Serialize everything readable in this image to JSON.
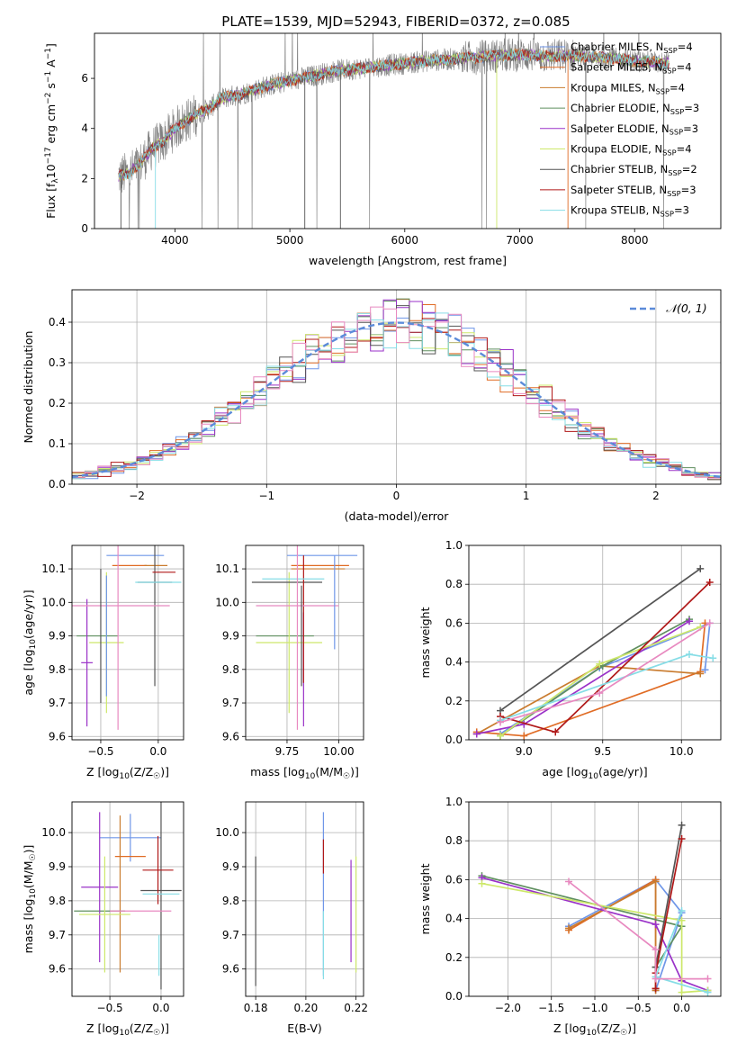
{
  "figure_title": "PLATE=1539, MJD=52943, FIBERID=0372, z=0.085",
  "colors": {
    "Chabrier MILES": "#6f96e8",
    "Salpeter MILES": "#e06c25",
    "Kroupa MILES": "#c97b2e",
    "Chabrier ELODIE": "#5f8f5f",
    "Salpeter ELODIE": "#9a32c8",
    "Kroupa ELODIE": "#cde86a",
    "Chabrier STELIB": "#555555",
    "Salpeter STELIB": "#b01818",
    "Kroupa STELIB": "#86dde6",
    "hist_pink": "#e889c0",
    "normal_curve": "#5b8bd9",
    "data_grey": "#808080"
  },
  "chart_data": [
    {
      "id": "spectrum",
      "type": "line",
      "xlabel": "wavelength [Angstrom, rest frame]",
      "ylabel": "Flux [f_λ10^-17 erg cm^-2 s^-1 A^-1]",
      "xlim": [
        3300,
        8750
      ],
      "ylim": [
        0,
        7.8
      ],
      "xticks": [
        4000,
        5000,
        6000,
        7000,
        8000
      ],
      "yticks": [
        0,
        2,
        4,
        6
      ],
      "grid": false,
      "legend_position": "top-right",
      "legend": [
        {
          "label": "Chabrier MILES, N_SSP=4",
          "color": "#6f96e8"
        },
        {
          "label": "Salpeter MILES, N_SSP=4",
          "color": "#e06c25"
        },
        {
          "label": "Kroupa MILES, N_SSP=4",
          "color": "#c97b2e"
        },
        {
          "label": "Chabrier ELODIE, N_SSP=3",
          "color": "#5f8f5f"
        },
        {
          "label": "Salpeter ELODIE, N_SSP=3",
          "color": "#9a32c8"
        },
        {
          "label": "Kroupa ELODIE, N_SSP=4",
          "color": "#cde86a"
        },
        {
          "label": "Chabrier STELIB, N_SSP=2",
          "color": "#555555"
        },
        {
          "label": "Salpeter STELIB, N_SSP=3",
          "color": "#b01818"
        },
        {
          "label": "Kroupa STELIB, N_SSP=3",
          "color": "#86dde6"
        }
      ],
      "model_continuum": {
        "x": [
          3500,
          3600,
          3700,
          3800,
          3900,
          4000,
          4100,
          4200,
          4300,
          4400,
          4600,
          4800,
          5000,
          5200,
          5400,
          5600,
          5800,
          6000,
          6200,
          6500,
          6800,
          7000,
          7200,
          7500,
          7800,
          8000,
          8300
        ],
        "y": [
          2.1,
          2.2,
          2.6,
          3.2,
          3.5,
          4.0,
          4.3,
          4.6,
          4.8,
          5.2,
          5.4,
          5.7,
          5.9,
          6.1,
          6.3,
          6.4,
          6.5,
          6.6,
          6.7,
          6.8,
          6.9,
          6.95,
          6.9,
          6.9,
          6.8,
          6.7,
          6.6
        ]
      }
    },
    {
      "id": "residual-histogram",
      "type": "bar",
      "xlabel": "(data-model)/error",
      "ylabel": "Normed distribution",
      "xlim": [
        -2.5,
        2.5
      ],
      "ylim": [
        0,
        0.48
      ],
      "xticks": [
        -2,
        -1,
        0,
        1,
        2
      ],
      "yticks": [
        0.0,
        0.1,
        0.2,
        0.3,
        0.4
      ],
      "grid": true,
      "legend_position": "top-right",
      "legend": [
        {
          "label": "N(0,1)",
          "color": "#5b8bd9",
          "style": "dashed"
        }
      ],
      "bin_width": 0.1
    },
    {
      "id": "age-vs-Z",
      "type": "scatter",
      "xlabel": "Z [log10(Z/Z☉)]",
      "ylabel": "age [log10(age/yr)]",
      "xlim": [
        -0.75,
        0.22
      ],
      "ylim": [
        9.59,
        10.17
      ],
      "xticks": [
        -0.5,
        0.0
      ],
      "yticks": [
        9.6,
        9.7,
        9.8,
        9.9,
        10.0,
        10.1
      ],
      "grid": true,
      "points": [
        {
          "series": "Chabrier MILES",
          "x": -0.2,
          "xerr": 0.25,
          "y": 10.14,
          "yerr": 0.0
        },
        {
          "series": "Salpeter MILES",
          "x": -0.25,
          "xerr": 0.15,
          "y": 10.11,
          "yerr": 0.0
        },
        {
          "series": "Kroupa MILES",
          "x": -0.02,
          "xerr": 0.1,
          "y": 10.11,
          "yerr": 0.0
        },
        {
          "series": "Chabrier ELODIE",
          "x": -0.53,
          "xerr": 0.18,
          "y": 9.9,
          "yerr": 0.0
        },
        {
          "series": "Salpeter ELODIE",
          "x": -0.62,
          "xerr": 0.05,
          "y": 9.82,
          "yerr": 0.19
        },
        {
          "series": "Kroupa ELODIE",
          "x": -0.45,
          "xerr": 0.15,
          "y": 9.88,
          "yerr": 0.21
        },
        {
          "series": "Chabrier STELIB",
          "x": -0.03,
          "xerr": 0.15,
          "y": 10.06,
          "yerr": 0.31
        },
        {
          "series": "Salpeter STELIB",
          "x": 0.05,
          "xerr": 0.1,
          "y": 10.09,
          "yerr": 0.0
        },
        {
          "series": "Kroupa STELIB",
          "x": 0.0,
          "xerr": 0.2,
          "y": 10.06,
          "yerr": 0.0
        },
        {
          "series": "hist_pink",
          "x": -0.35,
          "xerr": 0.45,
          "y": 9.99,
          "yerr": 0.37
        },
        {
          "series": "Chabrier MILES",
          "x": -0.45,
          "xerr": 0.0,
          "y": 9.9,
          "yerr": 0.18
        },
        {
          "series": "Chabrier STELIB",
          "x": -0.5,
          "xerr": 0.0,
          "y": 9.9,
          "yerr": 0.2
        }
      ]
    },
    {
      "id": "age-vs-mass",
      "type": "scatter",
      "xlabel": "mass [log10(M/M☉)]",
      "ylabel": "",
      "xlim": [
        9.55,
        10.12
      ],
      "ylim": [
        9.59,
        10.17
      ],
      "xticks": [
        9.75,
        10.0
      ],
      "yticks": [
        9.6,
        9.7,
        9.8,
        9.9,
        10.0,
        10.1
      ],
      "grid": true,
      "points": [
        {
          "series": "Chabrier MILES",
          "x": 9.92,
          "xerr": 0.17,
          "y": 10.14,
          "yerr": 0.0
        },
        {
          "series": "Salpeter MILES",
          "x": 9.91,
          "xerr": 0.14,
          "y": 10.11,
          "yerr": 0.0
        },
        {
          "series": "Kroupa MILES",
          "x": 9.9,
          "xerr": 0.13,
          "y": 10.1,
          "yerr": 0.0
        },
        {
          "series": "Chabrier ELODIE",
          "x": 9.74,
          "xerr": 0.14,
          "y": 9.9,
          "yerr": 0.0
        },
        {
          "series": "Salpeter ELODIE",
          "x": 9.83,
          "xerr": 0.0,
          "y": 9.8,
          "yerr": 0.17
        },
        {
          "series": "Kroupa ELODIE",
          "x": 9.76,
          "xerr": 0.16,
          "y": 9.88,
          "yerr": 0.21
        },
        {
          "series": "Chabrier STELIB",
          "x": 9.75,
          "xerr": 0.17,
          "y": 10.06,
          "yerr": 0.0
        },
        {
          "series": "Salpeter STELIB",
          "x": 9.83,
          "xerr": 0.0,
          "y": 9.95,
          "yerr": 0.19
        },
        {
          "series": "Kroupa STELIB",
          "x": 9.78,
          "xerr": 0.15,
          "y": 10.07,
          "yerr": 0.0
        },
        {
          "series": "hist_pink",
          "x": 9.8,
          "xerr": 0.2,
          "y": 9.99,
          "yerr": 0.37
        },
        {
          "series": "Chabrier MILES",
          "x": 9.98,
          "xerr": 0.0,
          "y": 10.0,
          "yerr": 0.14
        },
        {
          "series": "Chabrier STELIB",
          "x": 9.82,
          "xerr": 0.0,
          "y": 9.9,
          "yerr": 0.15
        }
      ]
    },
    {
      "id": "mass-weight-vs-age",
      "type": "line",
      "xlabel": "age [log10(age/yr)]",
      "ylabel": "mass weight",
      "xlim": [
        8.65,
        10.25
      ],
      "ylim": [
        0.0,
        1.0
      ],
      "xticks": [
        9.0,
        9.5,
        10.0
      ],
      "yticks": [
        0.0,
        0.2,
        0.4,
        0.6,
        0.8,
        1.0
      ],
      "grid": true,
      "series": [
        {
          "name": "Chabrier MILES",
          "x": [
            8.85,
            9.48,
            10.18,
            10.15
          ],
          "y": [
            0.03,
            0.37,
            0.6,
            0.36
          ]
        },
        {
          "name": "Salpeter MILES",
          "x": [
            8.7,
            9.0,
            10.12,
            10.15
          ],
          "y": [
            0.04,
            0.02,
            0.35,
            0.6
          ]
        },
        {
          "name": "Kroupa MILES",
          "x": [
            8.7,
            9.48,
            10.12
          ],
          "y": [
            0.03,
            0.38,
            0.34
          ]
        },
        {
          "name": "Chabrier ELODIE",
          "x": [
            8.85,
            9.5,
            10.05
          ],
          "y": [
            0.02,
            0.38,
            0.62
          ]
        },
        {
          "name": "Salpeter ELODIE",
          "x": [
            8.7,
            9.0,
            10.05
          ],
          "y": [
            0.03,
            0.08,
            0.61
          ]
        },
        {
          "name": "Kroupa ELODIE",
          "x": [
            8.85,
            9.48,
            10.12
          ],
          "y": [
            0.02,
            0.39,
            0.58
          ]
        },
        {
          "name": "Chabrier STELIB",
          "x": [
            8.85,
            10.12
          ],
          "y": [
            0.15,
            0.88
          ]
        },
        {
          "name": "Salpeter STELIB",
          "x": [
            8.85,
            9.2,
            10.18
          ],
          "y": [
            0.12,
            0.04,
            0.81
          ]
        },
        {
          "name": "Kroupa STELIB",
          "x": [
            8.85,
            10.05,
            10.2
          ],
          "y": [
            0.1,
            0.44,
            0.42
          ]
        },
        {
          "name": "hist_pink",
          "x": [
            8.85,
            9.48,
            10.18
          ],
          "y": [
            0.09,
            0.24,
            0.6
          ]
        }
      ]
    },
    {
      "id": "mass-vs-Z",
      "type": "scatter",
      "xlabel": "Z [log10(Z/Z☉)]",
      "ylabel": "mass [log10(M/M☉)]",
      "xlim": [
        -0.87,
        0.22
      ],
      "ylim": [
        9.52,
        10.09
      ],
      "xticks": [
        -0.5,
        0.0
      ],
      "yticks": [
        9.6,
        9.7,
        9.8,
        9.9,
        10.0
      ],
      "grid": true,
      "points": [
        {
          "series": "Chabrier MILES",
          "x": -0.3,
          "xerr": 0.3,
          "y": 9.985,
          "yerr": 0.07
        },
        {
          "series": "Salpeter MILES",
          "x": -0.3,
          "xerr": 0.15,
          "y": 9.93,
          "yerr": 0.0
        },
        {
          "series": "Kroupa MILES",
          "x": -0.4,
          "xerr": 0.0,
          "y": 9.82,
          "yerr": 0.23
        },
        {
          "series": "Chabrier ELODIE",
          "x": -0.6,
          "xerr": 0.25,
          "y": 9.77,
          "yerr": 0.0
        },
        {
          "series": "Salpeter ELODIE",
          "x": -0.6,
          "xerr": 0.18,
          "y": 9.84,
          "yerr": 0.22
        },
        {
          "series": "Kroupa ELODIE",
          "x": -0.55,
          "xerr": 0.25,
          "y": 9.76,
          "yerr": 0.17
        },
        {
          "series": "Chabrier STELIB",
          "x": 0.0,
          "xerr": 0.2,
          "y": 9.83,
          "yerr": 0.29
        },
        {
          "series": "Salpeter STELIB",
          "x": -0.03,
          "xerr": 0.15,
          "y": 9.89,
          "yerr": 0.1
        },
        {
          "series": "Kroupa STELIB",
          "x": 0.0,
          "xerr": 0.18,
          "y": 9.82,
          "yerr": 0.0
        },
        {
          "series": "hist_pink",
          "x": -0.2,
          "xerr": 0.3,
          "y": 9.77,
          "yerr": 0.0
        },
        {
          "series": "Kroupa STELIB",
          "x": -0.02,
          "xerr": 0.0,
          "y": 9.64,
          "yerr": 0.06
        }
      ]
    },
    {
      "id": "mass-vs-EBV",
      "type": "scatter",
      "xlabel": "E(B-V)",
      "ylabel": "",
      "xlim": [
        0.176,
        0.223
      ],
      "ylim": [
        9.52,
        10.09
      ],
      "xticks": [
        0.18,
        0.2,
        0.22
      ],
      "yticks": [
        9.6,
        9.7,
        9.8,
        9.9,
        10.0
      ],
      "grid": true,
      "points": [
        {
          "series": "Chabrier STELIB",
          "x": 0.18,
          "xerr": 0.0,
          "y": 9.74,
          "yerr": 0.19
        },
        {
          "series": "Chabrier MILES",
          "x": 0.207,
          "xerr": 0.0,
          "y": 9.82,
          "yerr": 0.24
        },
        {
          "series": "Salpeter STELIB",
          "x": 0.207,
          "xerr": 0.0,
          "y": 9.93,
          "yerr": 0.05
        },
        {
          "series": "Kroupa STELIB",
          "x": 0.207,
          "xerr": 0.0,
          "y": 9.67,
          "yerr": 0.1
        },
        {
          "series": "Salpeter ELODIE",
          "x": 0.218,
          "xerr": 0.0,
          "y": 9.77,
          "yerr": 0.15
        },
        {
          "series": "Kroupa ELODIE",
          "x": 0.22,
          "xerr": 0.0,
          "y": 9.76,
          "yerr": 0.17
        }
      ]
    },
    {
      "id": "mass-weight-vs-Z",
      "type": "line",
      "xlabel": "Z [log10(Z/Z☉)]",
      "ylabel": "mass weight",
      "xlim": [
        -2.45,
        0.45
      ],
      "ylim": [
        0.0,
        1.0
      ],
      "xticks": [
        -2.0,
        -1.5,
        -1.0,
        -0.5,
        0.0
      ],
      "yticks": [
        0.0,
        0.2,
        0.4,
        0.6,
        0.8,
        1.0
      ],
      "grid": true,
      "series": [
        {
          "name": "Chabrier MILES",
          "x": [
            -1.3,
            -0.3,
            0.0,
            -0.3
          ],
          "y": [
            0.36,
            0.6,
            0.43,
            0.03
          ]
        },
        {
          "name": "Salpeter MILES",
          "x": [
            -1.3,
            -0.3,
            -0.3
          ],
          "y": [
            0.34,
            0.6,
            0.04
          ]
        },
        {
          "name": "Kroupa MILES",
          "x": [
            -1.3,
            -0.3,
            -0.3
          ],
          "y": [
            0.35,
            0.59,
            0.03
          ]
        },
        {
          "name": "Chabrier ELODIE",
          "x": [
            -2.3,
            0.0,
            -0.3
          ],
          "y": [
            0.62,
            0.36,
            0.15
          ]
        },
        {
          "name": "Salpeter ELODIE",
          "x": [
            -2.3,
            -0.3,
            0.0,
            0.3
          ],
          "y": [
            0.61,
            0.37,
            0.08,
            0.03
          ]
        },
        {
          "name": "Kroupa ELODIE",
          "x": [
            -2.3,
            0.0,
            0.0,
            0.3
          ],
          "y": [
            0.58,
            0.39,
            0.02,
            0.03
          ]
        },
        {
          "name": "Chabrier STELIB",
          "x": [
            0.0,
            -0.3
          ],
          "y": [
            0.88,
            0.15
          ]
        },
        {
          "name": "Salpeter STELIB",
          "x": [
            0.0,
            -0.3,
            -0.3
          ],
          "y": [
            0.81,
            0.12,
            0.04
          ]
        },
        {
          "name": "Kroupa STELIB",
          "x": [
            0.0,
            -0.3,
            0.3
          ],
          "y": [
            0.44,
            0.1,
            0.02
          ]
        },
        {
          "name": "hist_pink",
          "x": [
            -1.3,
            -0.3,
            -0.3,
            0.3
          ],
          "y": [
            0.59,
            0.24,
            0.09,
            0.09
          ]
        }
      ]
    }
  ]
}
